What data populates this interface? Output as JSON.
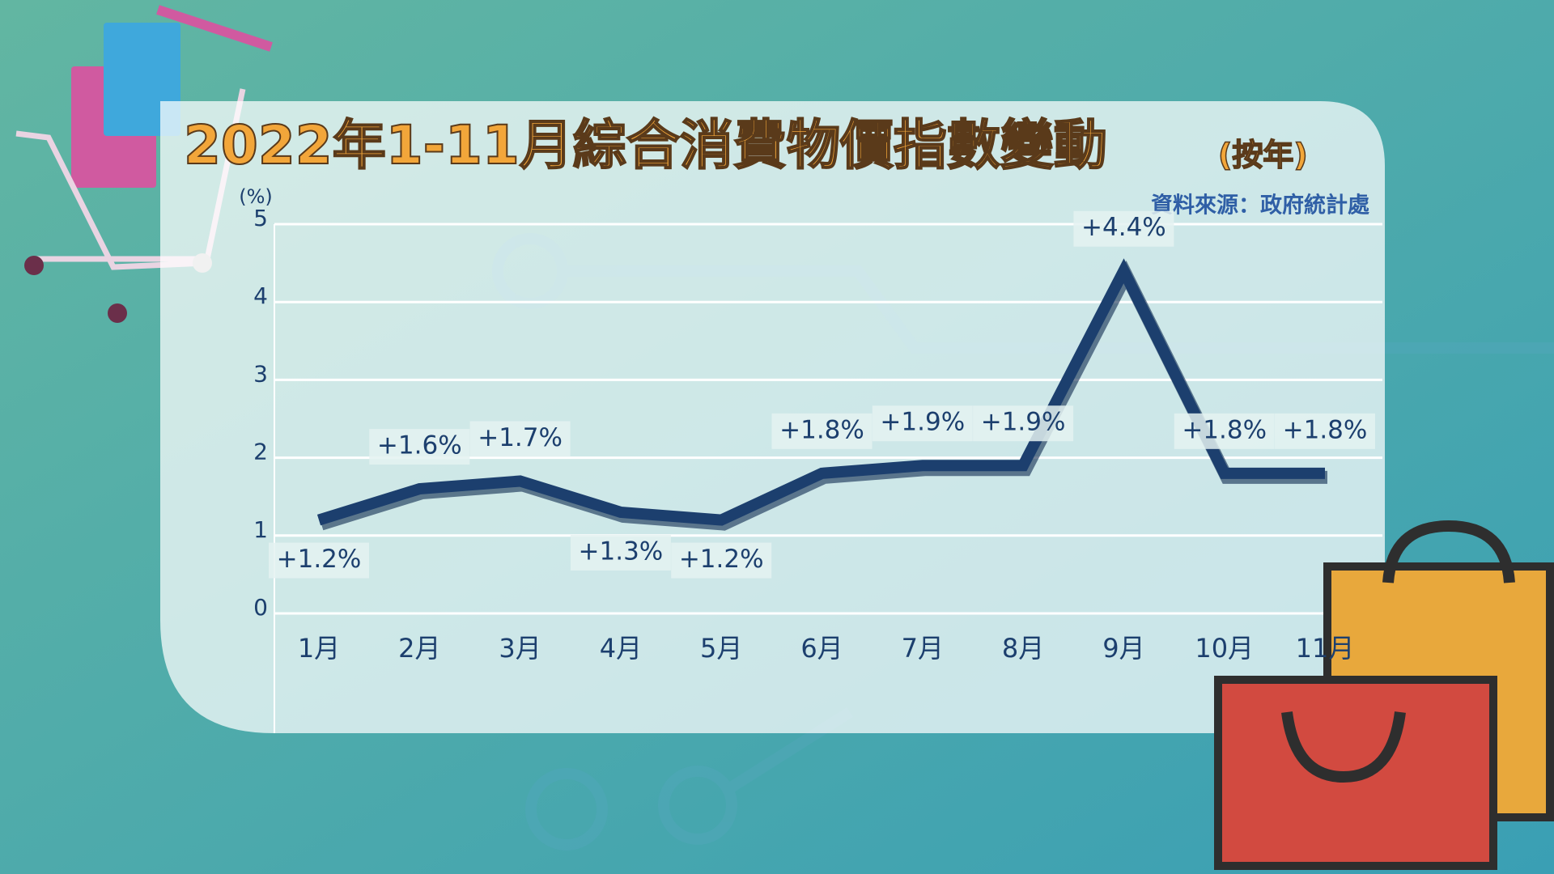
{
  "chart_data": {
    "type": "line",
    "title": "2022年1-11月綜合消費物價指數變動",
    "subtitle": "(按年)",
    "source": "資料來源：政府統計處",
    "y_label": "(%)",
    "categories": [
      "1月",
      "2月",
      "3月",
      "4月",
      "5月",
      "6月",
      "7月",
      "8月",
      "9月",
      "10月",
      "11月"
    ],
    "values": [
      1.2,
      1.6,
      1.7,
      1.3,
      1.2,
      1.8,
      1.9,
      1.9,
      4.4,
      1.8,
      1.8
    ],
    "value_labels": [
      "+1.2%",
      "+1.6%",
      "+1.7%",
      "+1.3%",
      "+1.2%",
      "+1.8%",
      "+1.9%",
      "+1.9%",
      "+4.4%",
      "+1.8%",
      "+1.8%"
    ],
    "color": "#1c3f6e",
    "ylim": [
      0,
      5
    ],
    "yticks": [
      0,
      1,
      2,
      3,
      4,
      5
    ],
    "grid": true
  }
}
